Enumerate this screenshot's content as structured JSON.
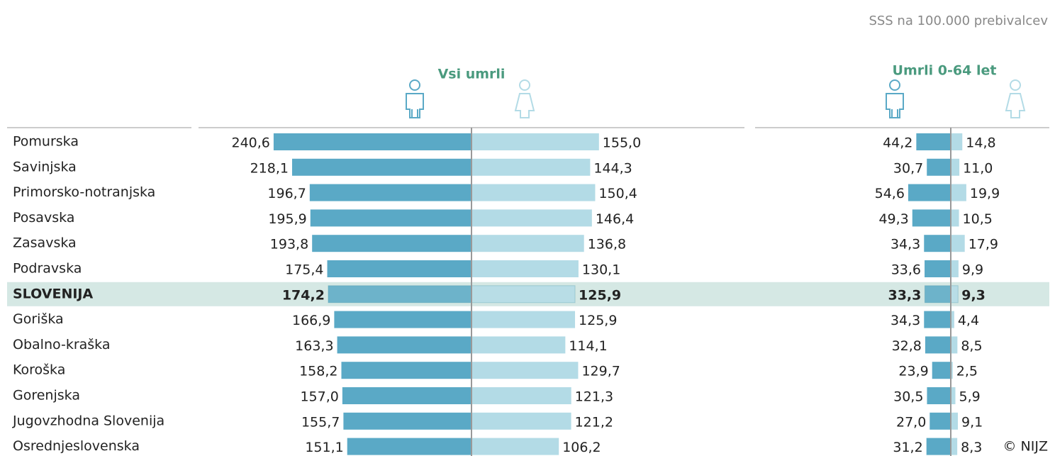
{
  "chart_data": {
    "type": "bar",
    "unit": "SSS na 100.000 prebivalcev",
    "credit": "© NIJZ",
    "highlight": "SLOVENIJA",
    "categories": [
      "Pomurska",
      "Savinjska",
      "Primorsko-notranjska",
      "Posavska",
      "Zasavska",
      "Podravska",
      "SLOVENIJA",
      "Goriška",
      "Obalno-kraška",
      "Koroška",
      "Gorenjska",
      "Jugovzhodna Slovenija",
      "Osrednjeslovenska"
    ],
    "panels": [
      {
        "title": "Vsi umrli",
        "series": [
          {
            "color": "#5aa9c6",
            "values": [
              240.6,
              218.1,
              196.7,
              195.9,
              193.8,
              175.4,
              174.2,
              166.9,
              163.3,
              158.2,
              157.0,
              155.7,
              151.1
            ],
            "value_labels": [
              "240,6",
              "218,1",
              "196,7",
              "195,9",
              "193,8",
              "175,4",
              "174,2",
              "166,9",
              "163,3",
              "158,2",
              "157,0",
              "155,7",
              "151,1"
            ]
          },
          {
            "color": "#b3dbe6",
            "values": [
              155.0,
              144.3,
              150.4,
              146.4,
              136.8,
              130.1,
              125.9,
              125.9,
              114.1,
              129.7,
              121.3,
              121.2,
              106.2
            ],
            "value_labels": [
              "155,0",
              "144,3",
              "150,4",
              "146,4",
              "136,8",
              "130,1",
              "125,9",
              "125,9",
              "114,1",
              "129,7",
              "121,3",
              "121,2",
              "106,2"
            ]
          }
        ]
      },
      {
        "title": "Umrli 0-64 let",
        "series": [
          {
            "color": "#5aa9c6",
            "values": [
              44.2,
              30.7,
              54.6,
              49.3,
              34.3,
              33.6,
              33.3,
              34.3,
              32.8,
              23.9,
              30.5,
              27.0,
              31.2
            ],
            "value_labels": [
              "44,2",
              "30,7",
              "54,6",
              "49,3",
              "34,3",
              "33,6",
              "33,3",
              "34,3",
              "32,8",
              "23,9",
              "30,5",
              "27,0",
              "31,2"
            ]
          },
          {
            "color": "#b3dbe6",
            "values": [
              14.8,
              11.0,
              19.9,
              10.5,
              17.9,
              9.9,
              9.3,
              4.4,
              8.5,
              2.5,
              5.9,
              9.1,
              8.3
            ],
            "value_labels": [
              "14,8",
              "11,0",
              "19,9",
              "10,5",
              "17,9",
              "9,9",
              "9,3",
              "4,4",
              "8,5",
              "2,5",
              "5,9",
              "9,1",
              "8,3"
            ]
          }
        ]
      }
    ]
  }
}
